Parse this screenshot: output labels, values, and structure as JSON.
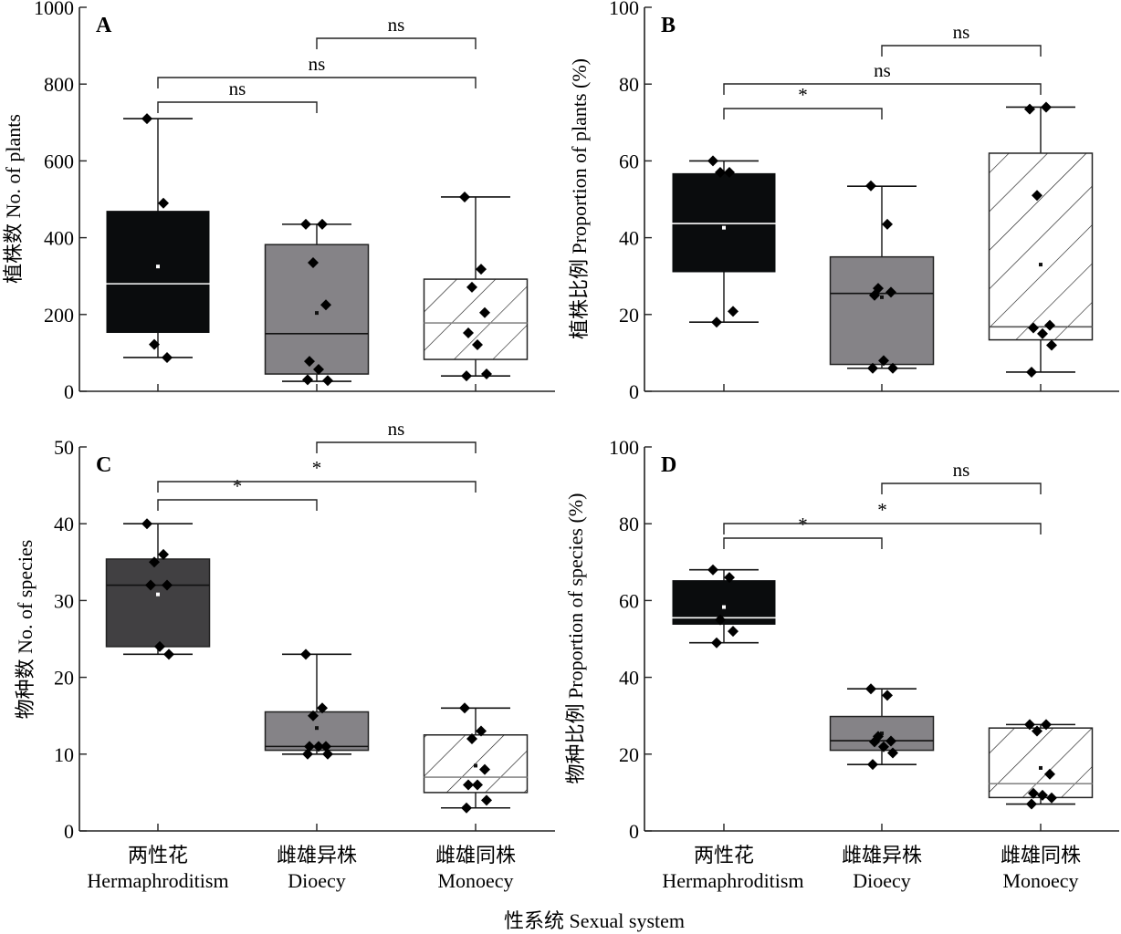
{
  "figure": {
    "x_axis_title": "性系统 Sexual system",
    "categories": [
      {
        "cn": "两性花",
        "en": "Hermaphroditism"
      },
      {
        "cn": "雌雄异株",
        "en": "Dioecy"
      },
      {
        "cn": "雌雄同株",
        "en": "Monoecy"
      }
    ],
    "styles": {
      "box_fill_colors": [
        "#0a0c0d",
        "#858387",
        "hatched-white"
      ],
      "panel_c_herm_fill": "#414042",
      "point_color": "#000000"
    }
  },
  "chart_data": [
    {
      "type": "box",
      "panel": "A",
      "ylabel": "植株数 No. of plants",
      "ylim": [
        0,
        1000
      ],
      "yticks": [
        "0",
        "200",
        "400",
        "600",
        "800",
        "1000"
      ],
      "categories": [
        "Hermaphroditism",
        "Dioecy",
        "Monoecy"
      ],
      "boxes": [
        {
          "whisker_low": 88,
          "q1": 152,
          "median": 280,
          "q3": 470,
          "whisker_high": 710,
          "mean": 325,
          "points": [
            710,
            490,
            122,
            88
          ]
        },
        {
          "whisker_low": 26,
          "q1": 45,
          "median": 150,
          "q3": 382,
          "whisker_high": 435,
          "mean": 204,
          "points": [
            435,
            435,
            335,
            225,
            78,
            57,
            28,
            30
          ]
        },
        {
          "whisker_low": 40,
          "q1": 83,
          "median": 178,
          "q3": 292,
          "whisker_high": 506,
          "mean": null,
          "points": [
            506,
            318,
            271,
            205,
            152,
            121,
            45,
            40
          ]
        }
      ],
      "brackets": [
        {
          "from": 0,
          "to": 1,
          "label": "ns"
        },
        {
          "from": 0,
          "to": 2,
          "label": "ns"
        },
        {
          "from": 1,
          "to": 2,
          "label": "ns"
        }
      ]
    },
    {
      "type": "box",
      "panel": "B",
      "ylabel": "植株比例 Proportion of plants (%)",
      "ylim": [
        0,
        100
      ],
      "yticks": [
        "0",
        "20",
        "40",
        "60",
        "80",
        "100"
      ],
      "categories": [
        "Hermaphroditism",
        "Dioecy",
        "Monoecy"
      ],
      "boxes": [
        {
          "whisker_low": 18,
          "q1": 31,
          "median": 43.7,
          "q3": 56.8,
          "whisker_high": 60,
          "mean": 42.6,
          "points": [
            60,
            57,
            57,
            20.8,
            18
          ]
        },
        {
          "whisker_low": 6,
          "q1": 7,
          "median": 25.5,
          "q3": 35,
          "whisker_high": 53.4,
          "mean": 24.5,
          "points": [
            53.5,
            43.5,
            26.8,
            25.8,
            25,
            8,
            6,
            6
          ]
        },
        {
          "whisker_low": 5,
          "q1": 13.4,
          "median": 16.8,
          "q3": 62,
          "whisker_high": 74,
          "mean": 33,
          "points": [
            73.5,
            74,
            51,
            17.2,
            16.5,
            15,
            12,
            5
          ]
        }
      ],
      "brackets": [
        {
          "from": 0,
          "to": 1,
          "label": "*"
        },
        {
          "from": 0,
          "to": 2,
          "label": "ns"
        },
        {
          "from": 1,
          "to": 2,
          "label": "ns"
        }
      ]
    },
    {
      "type": "box",
      "panel": "C",
      "ylabel": "物种数 No. of  species",
      "ylim": [
        0,
        50
      ],
      "yticks": [
        "0",
        "10",
        "20",
        "30",
        "40",
        "50"
      ],
      "categories": [
        "Hermaphroditism",
        "Dioecy",
        "Monoecy"
      ],
      "boxes": [
        {
          "whisker_low": 23,
          "q1": 24,
          "median": 32,
          "q3": 35.4,
          "whisker_high": 40,
          "mean": 30.8,
          "points": [
            40,
            36,
            35,
            32,
            32,
            24,
            23
          ]
        },
        {
          "whisker_low": 10,
          "q1": 10.5,
          "median": 11,
          "q3": 15.5,
          "whisker_high": 23,
          "mean": 13.4,
          "points": [
            23,
            16,
            15,
            11,
            11,
            11,
            10,
            10
          ]
        },
        {
          "whisker_low": 3,
          "q1": 5,
          "median": 7,
          "q3": 12.5,
          "whisker_high": 16,
          "mean": 8.5,
          "points": [
            16,
            13,
            12,
            8,
            6,
            6,
            4,
            3
          ]
        }
      ],
      "brackets": [
        {
          "from": 0,
          "to": 1,
          "label": "*"
        },
        {
          "from": 0,
          "to": 2,
          "label": "*"
        },
        {
          "from": 1,
          "to": 2,
          "label": "ns"
        }
      ]
    },
    {
      "type": "box",
      "panel": "D",
      "ylabel": "物种比例 Proportion of species (%)",
      "ylim": [
        0,
        100
      ],
      "yticks": [
        "0",
        "20",
        "40",
        "60",
        "80",
        "100"
      ],
      "categories": [
        "Hermaphroditism",
        "Dioecy",
        "Monoecy"
      ],
      "boxes": [
        {
          "whisker_low": 49,
          "q1": 53.7,
          "median": 55.5,
          "q3": 65.3,
          "whisker_high": 68,
          "mean": 58.3,
          "points": [
            68,
            66,
            55,
            52,
            49
          ]
        },
        {
          "whisker_low": 17.3,
          "q1": 21,
          "median": 23.5,
          "q3": 29.8,
          "whisker_high": 37,
          "mean": 25.4,
          "points": [
            37,
            35.3,
            24.6,
            23.4,
            23.2,
            21.9,
            20.3,
            17.3
          ]
        },
        {
          "whisker_low": 7,
          "q1": 8.7,
          "median": 12.3,
          "q3": 26.8,
          "whisker_high": 27.7,
          "mean": 16.4,
          "points": [
            27.7,
            27.7,
            26,
            14.8,
            9.8,
            9.3,
            8.6,
            7
          ]
        }
      ],
      "brackets": [
        {
          "from": 0,
          "to": 1,
          "label": "*"
        },
        {
          "from": 0,
          "to": 2,
          "label": "*"
        },
        {
          "from": 1,
          "to": 2,
          "label": "ns"
        }
      ]
    }
  ]
}
